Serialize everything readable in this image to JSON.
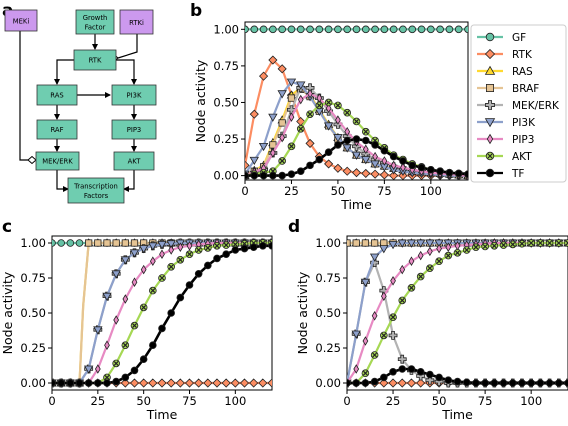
{
  "panel_letters": {
    "a": "a",
    "b": "b",
    "c": "c",
    "d": "d"
  },
  "colors": {
    "GF": "#66c2a5",
    "RTK": "#fc8d62",
    "RAS": "#ffd92f",
    "BRAF": "#e5c494",
    "MEK/ERK": "#b3b3b3",
    "PI3K": "#8da0cb",
    "PIP3": "#e78ac3",
    "AKT": "#a6d854",
    "TF": "#000000",
    "node_teal": "#6fcdb0",
    "node_purple": "#cc99ee"
  },
  "network": {
    "nodes": {
      "meki": "MEKi",
      "growth_factor_line1": "Growth",
      "growth_factor_line2": "Factor",
      "rtki": "RTKi",
      "rtk": "RTK",
      "ras": "RAS",
      "pi3k": "PI3K",
      "raf": "RAF",
      "pip3": "PIP3",
      "mek_erk": "MEK/ERK",
      "akt": "AKT",
      "tf_line1": "Transcription",
      "tf_line2": "Factors"
    }
  },
  "legend": {
    "entries": [
      {
        "label": "GF",
        "marker": "circle"
      },
      {
        "label": "RTK",
        "marker": "diamond"
      },
      {
        "label": "RAS",
        "marker": "triangle-up"
      },
      {
        "label": "BRAF",
        "marker": "square"
      },
      {
        "label": "MEK/ERK",
        "marker": "plus"
      },
      {
        "label": "PI3K",
        "marker": "triangle-down"
      },
      {
        "label": "PIP3",
        "marker": "thin-diamond"
      },
      {
        "label": "AKT",
        "marker": "x"
      },
      {
        "label": "TF",
        "marker": "circle"
      }
    ]
  },
  "chart_data": [
    {
      "panel": "b",
      "type": "line",
      "xlabel": "Time",
      "ylabel": "Node activity",
      "xlim": [
        0,
        120
      ],
      "ylim": [
        -0.03,
        1.05
      ],
      "xticks": [
        0,
        25,
        50,
        75,
        100
      ],
      "yticks": [
        0.0,
        0.25,
        0.5,
        0.75,
        1.0
      ],
      "ytick_labels": [
        "0.00",
        "0.25",
        "0.50",
        "0.75",
        "1.00"
      ],
      "series": [
        {
          "name": "GF",
          "x": [
            0,
            60,
            120
          ],
          "y": [
            1.0,
            1.0,
            1.0
          ]
        },
        {
          "name": "RTK",
          "x": [
            0,
            5,
            10,
            15,
            20,
            25,
            30,
            35,
            40,
            45,
            50,
            55,
            60,
            70,
            80,
            90,
            100,
            110,
            120
          ],
          "y": [
            0.07,
            0.42,
            0.68,
            0.79,
            0.73,
            0.55,
            0.37,
            0.22,
            0.13,
            0.08,
            0.05,
            0.03,
            0.02,
            0.01,
            0.0,
            0.0,
            0.0,
            0.0,
            0.0
          ]
        },
        {
          "name": "RAS",
          "x": [
            0,
            10,
            20,
            25,
            30,
            35,
            40,
            45,
            50,
            55,
            60,
            70,
            80,
            90,
            100,
            110,
            120
          ],
          "y": [
            0.0,
            0.07,
            0.38,
            0.55,
            0.6,
            0.55,
            0.45,
            0.35,
            0.26,
            0.19,
            0.14,
            0.08,
            0.05,
            0.03,
            0.02,
            0.01,
            0.0
          ]
        },
        {
          "name": "BRAF",
          "x": [
            0,
            10,
            20,
            25,
            30,
            35,
            40,
            45,
            50,
            55,
            60,
            70,
            80,
            90,
            100,
            110,
            120
          ],
          "y": [
            0.0,
            0.06,
            0.36,
            0.53,
            0.59,
            0.54,
            0.44,
            0.34,
            0.25,
            0.19,
            0.14,
            0.08,
            0.05,
            0.03,
            0.02,
            0.01,
            0.0
          ]
        },
        {
          "name": "MEK/ERK",
          "x": [
            0,
            10,
            20,
            25,
            30,
            35,
            40,
            45,
            50,
            55,
            60,
            65,
            70,
            80,
            90,
            100,
            110,
            120
          ],
          "y": [
            0.0,
            0.04,
            0.27,
            0.45,
            0.6,
            0.6,
            0.53,
            0.44,
            0.35,
            0.27,
            0.2,
            0.15,
            0.11,
            0.06,
            0.03,
            0.02,
            0.01,
            0.0
          ]
        },
        {
          "name": "PI3K",
          "x": [
            0,
            10,
            15,
            20,
            25,
            30,
            35,
            40,
            45,
            50,
            55,
            60,
            70,
            80,
            90,
            100,
            110,
            120
          ],
          "y": [
            0.01,
            0.2,
            0.4,
            0.56,
            0.64,
            0.62,
            0.54,
            0.44,
            0.34,
            0.26,
            0.19,
            0.14,
            0.08,
            0.04,
            0.02,
            0.01,
            0.0,
            0.0
          ]
        },
        {
          "name": "PIP3",
          "x": [
            0,
            10,
            20,
            25,
            30,
            35,
            40,
            45,
            50,
            55,
            60,
            70,
            80,
            90,
            100,
            110,
            120
          ],
          "y": [
            0.0,
            0.05,
            0.26,
            0.4,
            0.52,
            0.56,
            0.53,
            0.46,
            0.38,
            0.3,
            0.23,
            0.13,
            0.07,
            0.04,
            0.02,
            0.01,
            0.0
          ]
        },
        {
          "name": "AKT",
          "x": [
            0,
            15,
            20,
            25,
            30,
            35,
            40,
            45,
            50,
            55,
            60,
            65,
            70,
            80,
            90,
            100,
            110,
            120
          ],
          "y": [
            0.0,
            0.03,
            0.1,
            0.2,
            0.32,
            0.42,
            0.48,
            0.5,
            0.48,
            0.43,
            0.37,
            0.3,
            0.24,
            0.14,
            0.08,
            0.04,
            0.02,
            0.01
          ]
        },
        {
          "name": "TF",
          "x": [
            0,
            20,
            25,
            30,
            35,
            40,
            45,
            50,
            55,
            60,
            65,
            70,
            75,
            80,
            90,
            100,
            110,
            120
          ],
          "y": [
            0.0,
            0.0,
            0.01,
            0.03,
            0.07,
            0.11,
            0.16,
            0.21,
            0.24,
            0.25,
            0.24,
            0.21,
            0.17,
            0.13,
            0.07,
            0.04,
            0.02,
            0.01
          ]
        }
      ]
    },
    {
      "panel": "c",
      "type": "line",
      "xlabel": "Time",
      "ylabel": "Node activity",
      "xlim": [
        0,
        120
      ],
      "ylim": [
        -0.05,
        1.05
      ],
      "xticks": [
        0,
        25,
        50,
        75,
        100
      ],
      "yticks": [
        0.0,
        0.25,
        0.5,
        0.75,
        1.0
      ],
      "ytick_labels": [
        "0.00",
        "0.25",
        "0.50",
        "0.75",
        "1.00"
      ],
      "series": [
        {
          "name": "GF",
          "x": [
            0,
            60,
            120
          ],
          "y": [
            1.0,
            1.0,
            1.0
          ]
        },
        {
          "name": "RTK",
          "x": [
            0,
            60,
            120
          ],
          "y": [
            0.0,
            0.0,
            0.0
          ]
        },
        {
          "name": "RAS",
          "x": [
            0,
            15,
            17,
            20,
            30,
            60,
            120
          ],
          "y": [
            0.0,
            0.0,
            0.55,
            1.0,
            1.0,
            1.0,
            1.0
          ]
        },
        {
          "name": "BRAF",
          "x": [
            0,
            15,
            17,
            20,
            30,
            60,
            120
          ],
          "y": [
            0.0,
            0.0,
            0.55,
            1.0,
            1.0,
            1.0,
            1.0
          ]
        },
        {
          "name": "MEK/ERK",
          "x": [
            0,
            15,
            20,
            25,
            30,
            35,
            40,
            45,
            50,
            55,
            60,
            70,
            80,
            90,
            100,
            110,
            120
          ],
          "y": [
            0.0,
            0.0,
            0.1,
            0.38,
            0.62,
            0.78,
            0.88,
            0.93,
            0.96,
            0.98,
            0.99,
            1.0,
            1.0,
            1.0,
            1.0,
            1.0,
            1.0
          ]
        },
        {
          "name": "PI3K",
          "x": [
            0,
            15,
            20,
            25,
            30,
            35,
            40,
            45,
            50,
            55,
            60,
            70,
            80,
            90,
            100,
            110,
            120
          ],
          "y": [
            0.0,
            0.0,
            0.1,
            0.38,
            0.62,
            0.78,
            0.88,
            0.93,
            0.96,
            0.98,
            0.99,
            1.0,
            1.0,
            1.0,
            1.0,
            1.0,
            1.0
          ]
        },
        {
          "name": "PIP3",
          "x": [
            0,
            20,
            25,
            30,
            35,
            40,
            45,
            50,
            55,
            60,
            65,
            70,
            80,
            90,
            100,
            110,
            120
          ],
          "y": [
            0.0,
            0.0,
            0.1,
            0.27,
            0.45,
            0.6,
            0.72,
            0.81,
            0.87,
            0.92,
            0.95,
            0.97,
            0.99,
            1.0,
            1.0,
            1.0,
            1.0
          ]
        },
        {
          "name": "AKT",
          "x": [
            0,
            25,
            30,
            35,
            40,
            45,
            50,
            55,
            60,
            65,
            70,
            75,
            80,
            90,
            100,
            110,
            120
          ],
          "y": [
            0.0,
            0.0,
            0.04,
            0.14,
            0.27,
            0.41,
            0.54,
            0.66,
            0.75,
            0.83,
            0.88,
            0.92,
            0.95,
            0.98,
            0.99,
            1.0,
            1.0
          ]
        },
        {
          "name": "TF",
          "x": [
            0,
            25,
            30,
            35,
            40,
            45,
            50,
            55,
            60,
            65,
            70,
            75,
            80,
            85,
            90,
            95,
            100,
            105,
            110,
            115,
            120
          ],
          "y": [
            0.0,
            0.0,
            0.0,
            0.01,
            0.04,
            0.09,
            0.17,
            0.27,
            0.39,
            0.5,
            0.61,
            0.7,
            0.78,
            0.84,
            0.89,
            0.92,
            0.95,
            0.96,
            0.97,
            0.98,
            0.98
          ]
        }
      ]
    },
    {
      "panel": "d",
      "type": "line",
      "xlabel": "Time",
      "ylabel": "Node activity",
      "xlim": [
        0,
        120
      ],
      "ylim": [
        -0.05,
        1.05
      ],
      "xticks": [
        0,
        25,
        50,
        75,
        100
      ],
      "yticks": [
        0.0,
        0.25,
        0.5,
        0.75,
        1.0
      ],
      "ytick_labels": [
        "0.00",
        "0.25",
        "0.50",
        "0.75",
        "1.00"
      ],
      "series": [
        {
          "name": "GF",
          "x": [
            0,
            60,
            120
          ],
          "y": [
            1.0,
            1.0,
            1.0
          ]
        },
        {
          "name": "RTK",
          "x": [
            0,
            60,
            120
          ],
          "y": [
            0.0,
            0.0,
            0.0
          ]
        },
        {
          "name": "RAS",
          "x": [
            0,
            60,
            120
          ],
          "y": [
            1.0,
            1.0,
            1.0
          ]
        },
        {
          "name": "BRAF",
          "x": [
            0,
            60,
            120
          ],
          "y": [
            1.0,
            1.0,
            1.0
          ]
        },
        {
          "name": "MEK/ERK",
          "x": [
            0,
            5,
            10,
            15,
            20,
            25,
            30,
            35,
            40,
            45,
            50,
            55,
            60,
            70,
            80,
            90,
            100,
            110,
            120
          ],
          "y": [
            0.0,
            0.35,
            0.72,
            0.86,
            0.66,
            0.34,
            0.17,
            0.09,
            0.05,
            0.02,
            0.01,
            0.0,
            0.0,
            0.0,
            0.0,
            0.0,
            0.0,
            0.0,
            0.0
          ]
        },
        {
          "name": "PI3K",
          "x": [
            0,
            5,
            10,
            15,
            20,
            25,
            30,
            35,
            40,
            45,
            50,
            55,
            60,
            70,
            80,
            90,
            100,
            110,
            120
          ],
          "y": [
            0.0,
            0.35,
            0.72,
            0.9,
            0.96,
            0.99,
            1.0,
            1.0,
            1.0,
            1.0,
            1.0,
            1.0,
            1.0,
            1.0,
            1.0,
            1.0,
            1.0,
            1.0,
            1.0
          ]
        },
        {
          "name": "PIP3",
          "x": [
            0,
            5,
            10,
            15,
            20,
            25,
            30,
            35,
            40,
            45,
            50,
            55,
            60,
            70,
            80,
            90,
            100,
            110,
            120
          ],
          "y": [
            0.0,
            0.1,
            0.3,
            0.48,
            0.62,
            0.73,
            0.81,
            0.87,
            0.91,
            0.94,
            0.96,
            0.97,
            0.98,
            0.99,
            1.0,
            1.0,
            1.0,
            1.0,
            1.0
          ]
        },
        {
          "name": "AKT",
          "x": [
            0,
            5,
            10,
            15,
            20,
            25,
            30,
            35,
            40,
            45,
            50,
            55,
            60,
            65,
            70,
            80,
            90,
            100,
            110,
            120
          ],
          "y": [
            0.0,
            0.0,
            0.07,
            0.2,
            0.34,
            0.47,
            0.59,
            0.68,
            0.76,
            0.82,
            0.87,
            0.91,
            0.93,
            0.95,
            0.97,
            0.98,
            0.99,
            1.0,
            1.0,
            1.0
          ]
        },
        {
          "name": "TF",
          "x": [
            0,
            10,
            15,
            20,
            25,
            30,
            35,
            40,
            45,
            50,
            55,
            60,
            70,
            80,
            90,
            100,
            110,
            120
          ],
          "y": [
            0.0,
            0.0,
            0.01,
            0.04,
            0.08,
            0.1,
            0.1,
            0.08,
            0.06,
            0.04,
            0.02,
            0.01,
            0.0,
            0.0,
            0.0,
            0.0,
            0.0,
            0.0
          ]
        }
      ]
    }
  ]
}
